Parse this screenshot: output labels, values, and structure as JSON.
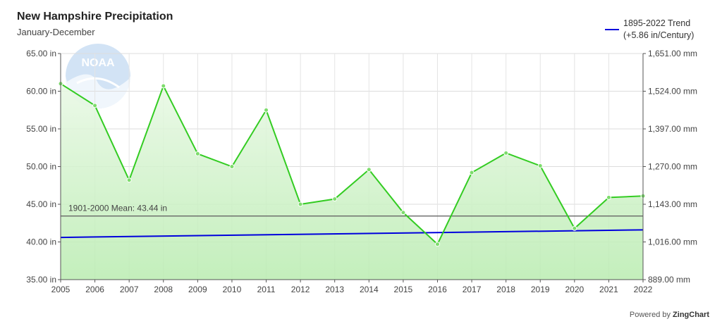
{
  "chart_data": {
    "type": "line",
    "title": "New Hampshire Precipitation",
    "subtitle": "January-December",
    "categories": [
      "2005",
      "2006",
      "2007",
      "2008",
      "2009",
      "2010",
      "2011",
      "2012",
      "2013",
      "2014",
      "2015",
      "2016",
      "2017",
      "2018",
      "2019",
      "2020",
      "2021",
      "2022"
    ],
    "series": [
      {
        "name": "",
        "color": "#33cc22",
        "values": [
          61.0,
          58.1,
          48.2,
          60.7,
          51.7,
          50.0,
          57.5,
          45.0,
          45.7,
          49.6,
          43.9,
          39.7,
          49.2,
          51.8,
          50.1,
          41.8,
          45.9,
          46.1
        ]
      },
      {
        "name": "1895-2022 Trend",
        "color": "#0000dd",
        "values_start_end": [
          40.6,
          41.6
        ]
      }
    ],
    "trend_label_line1": "1895-2022 Trend",
    "trend_label_line2": "(+5.86 in/Century)",
    "mean_value": 43.44,
    "mean_label": "1901-2000 Mean: 43.44 in",
    "ylim": [
      35,
      65
    ],
    "y_ticks_left": [
      "35.00 in",
      "40.00 in",
      "45.00 in",
      "50.00 in",
      "55.00 in",
      "60.00 in",
      "65.00 in"
    ],
    "y_ticks_right": [
      "889.00 mm",
      "1,016.00 mm",
      "1,143.00 mm",
      "1,270.00 mm",
      "1,397.00 mm",
      "1,524.00 mm",
      "1,651.00 mm"
    ],
    "grid": true,
    "legend_position": "top-right"
  },
  "watermark_text": "NOAA",
  "footer": {
    "prefix": "Powered by",
    "brand": "ZingChart"
  }
}
